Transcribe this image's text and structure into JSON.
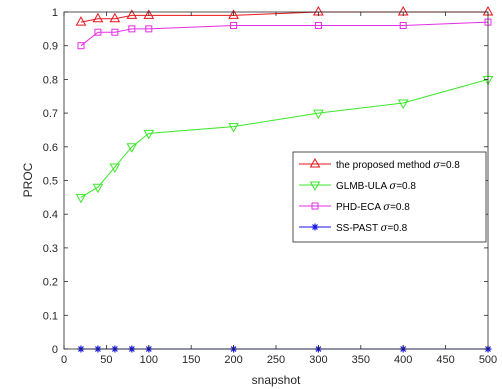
{
  "chart_data": {
    "type": "line",
    "xlabel": "snapshot",
    "ylabel": "PROC",
    "xlim": [
      0,
      500
    ],
    "ylim": [
      0,
      1
    ],
    "xticks": [
      0,
      50,
      100,
      150,
      200,
      250,
      300,
      350,
      400,
      450,
      500
    ],
    "yticks": [
      0,
      0.1,
      0.2,
      0.3,
      0.4,
      0.5,
      0.6,
      0.7,
      0.8,
      0.9,
      1
    ],
    "xtick_labels": [
      "0",
      "50",
      "100",
      "150",
      "200",
      "250",
      "300",
      "350",
      "400",
      "450",
      "500"
    ],
    "ytick_labels": [
      "0",
      "0.1",
      "0.2",
      "0.3",
      "0.4",
      "0.5",
      "0.6",
      "0.7",
      "0.8",
      "0.9",
      "1"
    ],
    "grid": false,
    "legend_position": "center-right",
    "series": [
      {
        "name": "the proposed method",
        "sigma_label": "=0.8",
        "color": "#e8141a",
        "marker": "triangle-up",
        "x": [
          20,
          40,
          60,
          80,
          100,
          200,
          300,
          400,
          500
        ],
        "y": [
          0.97,
          0.98,
          0.98,
          0.99,
          0.99,
          0.99,
          1.0,
          1.0,
          1.0
        ]
      },
      {
        "name": "GLMB-ULA",
        "sigma_label": "=0.8",
        "color": "#3be82a",
        "marker": "triangle-down",
        "x": [
          20,
          40,
          60,
          80,
          100,
          200,
          300,
          400,
          500
        ],
        "y": [
          0.45,
          0.48,
          0.54,
          0.6,
          0.64,
          0.66,
          0.7,
          0.73,
          0.8
        ]
      },
      {
        "name": "PHD-ECA",
        "sigma_label": "=0.8",
        "color": "#e62ee6",
        "marker": "square",
        "x": [
          20,
          40,
          60,
          80,
          100,
          200,
          300,
          400,
          500
        ],
        "y": [
          0.9,
          0.94,
          0.94,
          0.95,
          0.95,
          0.96,
          0.96,
          0.96,
          0.97
        ]
      },
      {
        "name": "SS-PAST",
        "sigma_label": "=0.8",
        "color": "#1414e6",
        "marker": "asterisk",
        "x": [
          20,
          40,
          60,
          80,
          100,
          200,
          300,
          400,
          500
        ],
        "y": [
          0,
          0,
          0,
          0,
          0,
          0,
          0,
          0,
          0
        ]
      }
    ]
  }
}
